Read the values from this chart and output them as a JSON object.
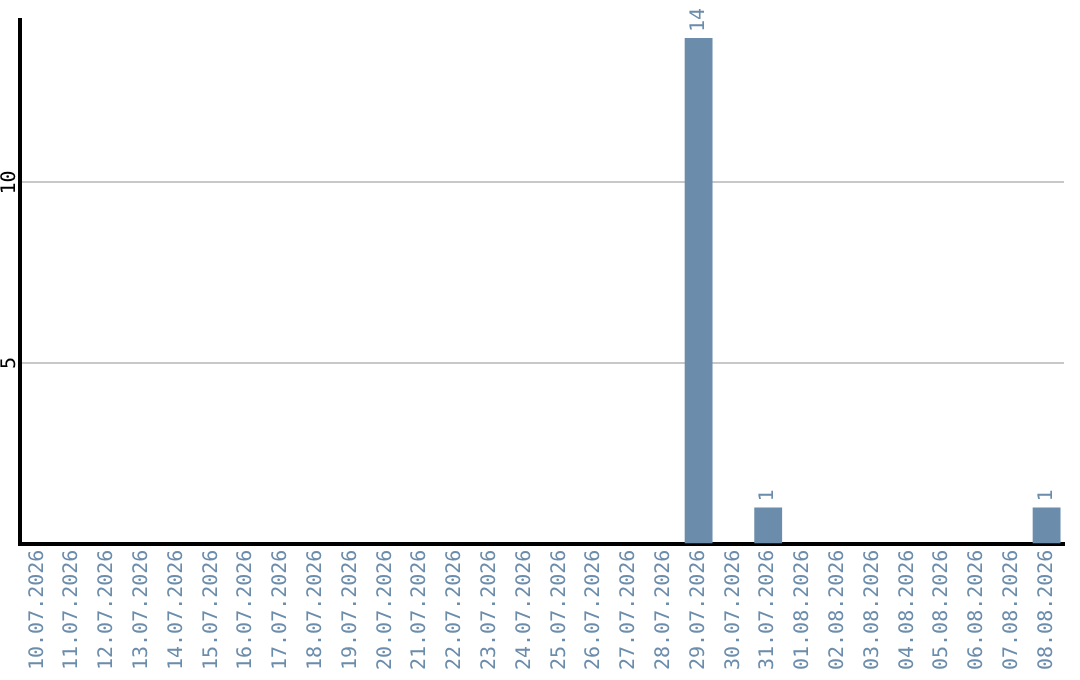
{
  "chart_data": {
    "type": "bar",
    "categories": [
      "10.07.2026",
      "11.07.2026",
      "12.07.2026",
      "13.07.2026",
      "14.07.2026",
      "15.07.2026",
      "16.07.2026",
      "17.07.2026",
      "18.07.2026",
      "19.07.2026",
      "20.07.2026",
      "21.07.2026",
      "22.07.2026",
      "23.07.2026",
      "24.07.2026",
      "25.07.2026",
      "26.07.2026",
      "27.07.2026",
      "28.07.2026",
      "29.07.2026",
      "30.07.2026",
      "31.07.2026",
      "01.08.2026",
      "02.08.2026",
      "03.08.2026",
      "04.08.2026",
      "05.08.2026",
      "06.08.2026",
      "07.08.2026",
      "08.08.2026"
    ],
    "values": [
      0,
      0,
      0,
      0,
      0,
      0,
      0,
      0,
      0,
      0,
      0,
      0,
      0,
      0,
      0,
      0,
      0,
      0,
      0,
      14,
      0,
      1,
      0,
      0,
      0,
      0,
      0,
      0,
      0,
      1
    ],
    "value_labels": [
      null,
      null,
      null,
      null,
      null,
      null,
      null,
      null,
      null,
      null,
      null,
      null,
      null,
      null,
      null,
      null,
      null,
      null,
      null,
      "14",
      null,
      "1",
      null,
      null,
      null,
      null,
      null,
      null,
      null,
      "1"
    ],
    "color": "#6b8cab",
    "ylim": [
      0,
      14.5
    ],
    "yticks": [
      5,
      10
    ],
    "grid": "y",
    "legend": false
  }
}
